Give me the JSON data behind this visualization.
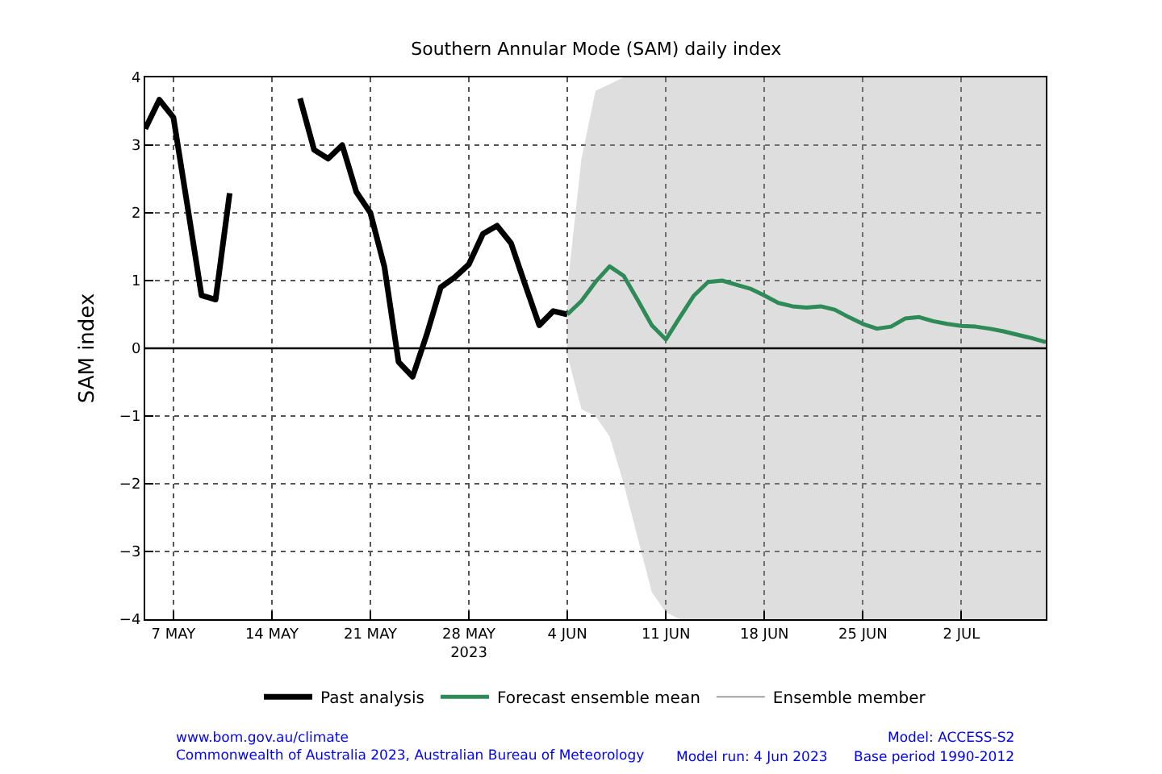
{
  "chart_data": {
    "type": "line",
    "title": "Southern Annular Mode (SAM) daily index",
    "ylabel": "SAM index",
    "xlim": [
      "2023-05-05",
      "2023-07-08"
    ],
    "xticks": [
      {
        "value": "2023-05-07",
        "label": "7 MAY"
      },
      {
        "value": "2023-05-14",
        "label": "14 MAY"
      },
      {
        "value": "2023-05-21",
        "label": "21 MAY"
      },
      {
        "value": "2023-05-28",
        "label": "28 MAY\n2023"
      },
      {
        "value": "2023-06-04",
        "label": "4 JUN"
      },
      {
        "value": "2023-06-11",
        "label": "11 JUN"
      },
      {
        "value": "2023-06-18",
        "label": "18 JUN"
      },
      {
        "value": "2023-06-25",
        "label": "25 JUN"
      },
      {
        "value": "2023-07-02",
        "label": "2 JUL"
      }
    ],
    "ylim": [
      -4,
      4
    ],
    "yticks": [
      {
        "value": -4,
        "label": "−4"
      },
      {
        "value": -3,
        "label": "−3"
      },
      {
        "value": -2,
        "label": "−2"
      },
      {
        "value": -1,
        "label": "−1"
      },
      0,
      1,
      2,
      3,
      4
    ],
    "grid": true,
    "legend": "bottom",
    "line_style": "solid",
    "ref_lines": [
      {
        "axis": "y",
        "value": 0,
        "color": "#000000"
      }
    ],
    "series": [
      {
        "name": "Ensemble member",
        "color": "#a0a0a0",
        "x": [
          "2023-06-04",
          "2023-06-05",
          "2023-06-06",
          "2023-06-07",
          "2023-06-08",
          "2023-06-09",
          "2023-06-10",
          "2023-06-11",
          "2023-06-12",
          "2023-06-16",
          "2023-06-20",
          "2023-06-24",
          "2023-06-28",
          "2023-07-02",
          "2023-07-06",
          "2023-07-08"
        ],
        "values": [
          null,
          null,
          null,
          null,
          null,
          null,
          null,
          null,
          null,
          null,
          null,
          null,
          null,
          null,
          null,
          null
        ],
        "upper": [
          0.9,
          2.8,
          3.8,
          3.9,
          4,
          4,
          4,
          4,
          4,
          4,
          4,
          4,
          4,
          4,
          4,
          4
        ],
        "lower": [
          -0.1,
          -0.9,
          -1.0,
          -1.3,
          -2.0,
          -2.8,
          -3.6,
          -3.9,
          -4,
          -4,
          -4,
          -4,
          -4,
          -4,
          -4,
          -4
        ]
      },
      {
        "name": "Past analysis",
        "color": "#000000",
        "x": [
          "2023-05-05",
          "2023-05-06",
          "2023-05-07",
          "2023-05-08",
          "2023-05-09",
          "2023-05-10",
          "2023-05-11",
          "2023-05-12",
          "2023-05-13",
          "2023-05-14",
          "2023-05-15",
          "2023-05-16",
          "2023-05-17",
          "2023-05-18",
          "2023-05-19",
          "2023-05-20",
          "2023-05-21",
          "2023-05-22",
          "2023-05-23",
          "2023-05-24",
          "2023-05-25",
          "2023-05-26",
          "2023-05-27",
          "2023-05-28",
          "2023-05-29",
          "2023-05-30",
          "2023-05-31",
          "2023-06-01",
          "2023-06-02",
          "2023-06-03",
          "2023-06-04"
        ],
        "values": [
          3.24,
          3.67,
          3.41,
          2.1,
          0.78,
          0.72,
          2.29,
          null,
          null,
          null,
          null,
          3.69,
          2.93,
          2.8,
          3.0,
          2.31,
          2.0,
          1.2,
          -0.2,
          -0.42,
          0.2,
          0.9,
          1.05,
          1.24,
          1.69,
          1.81,
          1.55,
          0.94,
          0.34,
          0.55,
          0.5
        ]
      },
      {
        "name": "Forecast ensemble mean",
        "color": "#2e8b57",
        "x": [
          "2023-06-04",
          "2023-06-05",
          "2023-06-06",
          "2023-06-07",
          "2023-06-08",
          "2023-06-09",
          "2023-06-10",
          "2023-06-11",
          "2023-06-12",
          "2023-06-13",
          "2023-06-14",
          "2023-06-15",
          "2023-06-16",
          "2023-06-17",
          "2023-06-18",
          "2023-06-19",
          "2023-06-20",
          "2023-06-21",
          "2023-06-22",
          "2023-06-23",
          "2023-06-24",
          "2023-06-25",
          "2023-06-26",
          "2023-06-27",
          "2023-06-28",
          "2023-06-29",
          "2023-06-30",
          "2023-07-01",
          "2023-07-02",
          "2023-07-03",
          "2023-07-04",
          "2023-07-05",
          "2023-07-06",
          "2023-07-07",
          "2023-07-08"
        ],
        "values": [
          0.5,
          0.7,
          0.98,
          1.21,
          1.07,
          0.71,
          0.34,
          0.13,
          0.46,
          0.78,
          0.98,
          1.0,
          0.94,
          0.88,
          0.78,
          0.67,
          0.62,
          0.6,
          0.62,
          0.57,
          0.46,
          0.36,
          0.29,
          0.32,
          0.44,
          0.46,
          0.4,
          0.36,
          0.33,
          0.32,
          0.29,
          0.25,
          0.2,
          0.15,
          0.09
        ]
      }
    ],
    "annotations": [
      "www.bom.gov.au/climate\nCommonwealth of Australia 2023, Australian Bureau of Meteorology",
      "Model: ACCESS-S2",
      "Model run: 4 Jun 2023      Base period 1990-2012"
    ]
  }
}
